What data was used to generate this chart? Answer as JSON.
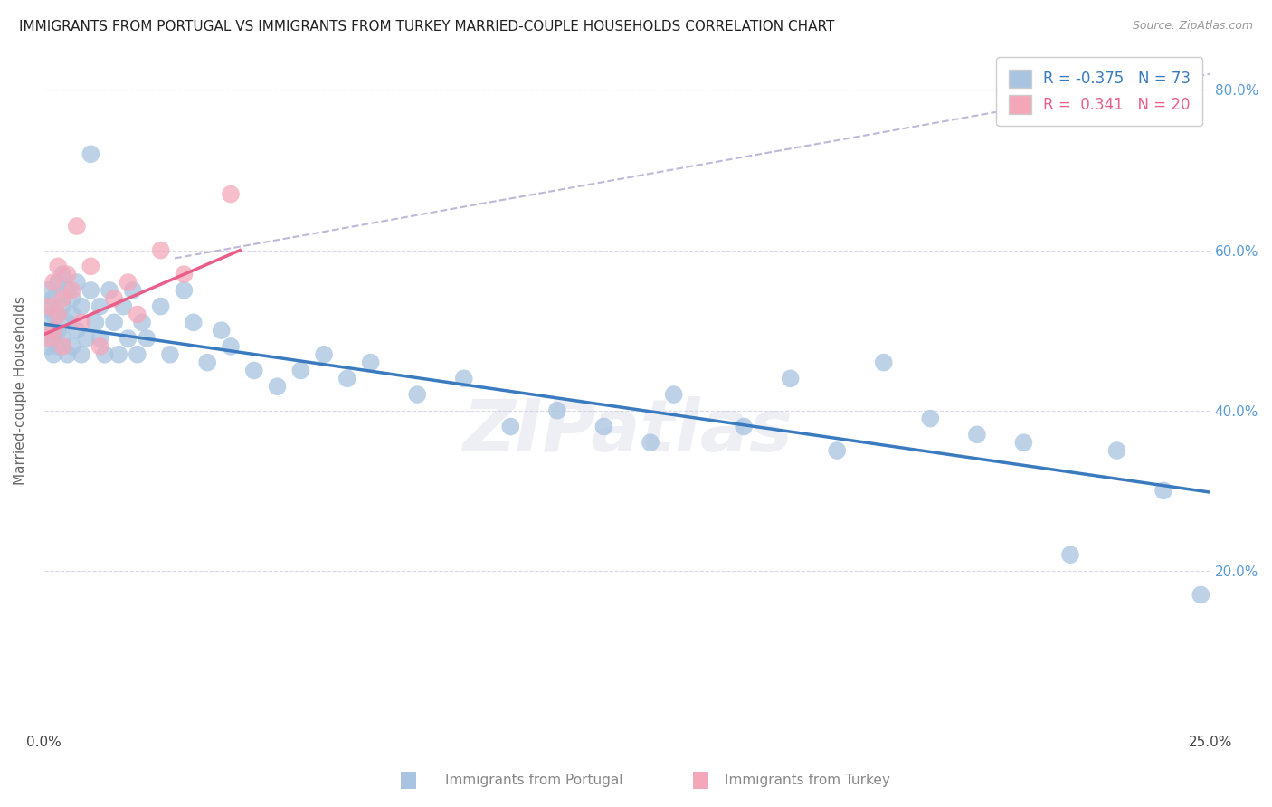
{
  "title": "IMMIGRANTS FROM PORTUGAL VS IMMIGRANTS FROM TURKEY MARRIED-COUPLE HOUSEHOLDS CORRELATION CHART",
  "source": "Source: ZipAtlas.com",
  "ylabel": "Married-couple Households",
  "x_min": 0.0,
  "x_max": 0.25,
  "y_min": 0.0,
  "y_max": 0.85,
  "y_ticks": [
    0.2,
    0.4,
    0.6,
    0.8
  ],
  "y_tick_labels": [
    "20.0%",
    "40.0%",
    "60.0%",
    "80.0%"
  ],
  "portugal_color": "#a8c4e0",
  "turkey_color": "#f4a7b9",
  "portugal_R": -0.375,
  "portugal_N": 73,
  "turkey_R": 0.341,
  "turkey_N": 20,
  "portugal_line_color": "#3a7abf",
  "turkey_line_color": "#e8608a",
  "dashed_line_color": "#c0b8d8",
  "portugal_line_x": [
    0.0,
    0.25
  ],
  "portugal_line_y": [
    0.508,
    0.298
  ],
  "turkey_line_x": [
    0.0,
    0.042
  ],
  "turkey_line_y": [
    0.495,
    0.6
  ],
  "dashed_line_x": [
    0.028,
    0.25
  ],
  "dashed_line_y": [
    0.59,
    0.82
  ],
  "portugal_scatter_x": [
    0.001,
    0.001,
    0.001,
    0.001,
    0.002,
    0.002,
    0.002,
    0.002,
    0.002,
    0.003,
    0.003,
    0.003,
    0.003,
    0.004,
    0.004,
    0.004,
    0.005,
    0.005,
    0.005,
    0.006,
    0.006,
    0.006,
    0.007,
    0.007,
    0.008,
    0.008,
    0.009,
    0.01,
    0.01,
    0.011,
    0.012,
    0.012,
    0.013,
    0.014,
    0.015,
    0.016,
    0.017,
    0.018,
    0.019,
    0.02,
    0.021,
    0.022,
    0.025,
    0.027,
    0.03,
    0.032,
    0.035,
    0.038,
    0.04,
    0.045,
    0.05,
    0.055,
    0.06,
    0.065,
    0.07,
    0.08,
    0.09,
    0.1,
    0.11,
    0.12,
    0.13,
    0.15,
    0.17,
    0.19,
    0.2,
    0.21,
    0.22,
    0.23,
    0.24,
    0.248,
    0.135,
    0.16,
    0.18
  ],
  "portugal_scatter_y": [
    0.51,
    0.53,
    0.48,
    0.55,
    0.5,
    0.52,
    0.47,
    0.54,
    0.49,
    0.56,
    0.5,
    0.52,
    0.48,
    0.53,
    0.49,
    0.57,
    0.51,
    0.55,
    0.47,
    0.52,
    0.54,
    0.48,
    0.56,
    0.5,
    0.53,
    0.47,
    0.49,
    0.72,
    0.55,
    0.51,
    0.49,
    0.53,
    0.47,
    0.55,
    0.51,
    0.47,
    0.53,
    0.49,
    0.55,
    0.47,
    0.51,
    0.49,
    0.53,
    0.47,
    0.55,
    0.51,
    0.46,
    0.5,
    0.48,
    0.45,
    0.43,
    0.45,
    0.47,
    0.44,
    0.46,
    0.42,
    0.44,
    0.38,
    0.4,
    0.38,
    0.36,
    0.38,
    0.35,
    0.39,
    0.37,
    0.36,
    0.22,
    0.35,
    0.3,
    0.17,
    0.42,
    0.44,
    0.46
  ],
  "turkey_scatter_x": [
    0.001,
    0.001,
    0.002,
    0.002,
    0.003,
    0.003,
    0.004,
    0.004,
    0.005,
    0.006,
    0.007,
    0.008,
    0.01,
    0.012,
    0.015,
    0.018,
    0.02,
    0.025,
    0.03,
    0.04
  ],
  "turkey_scatter_y": [
    0.53,
    0.49,
    0.56,
    0.5,
    0.58,
    0.52,
    0.54,
    0.48,
    0.57,
    0.55,
    0.63,
    0.51,
    0.58,
    0.48,
    0.54,
    0.56,
    0.52,
    0.6,
    0.57,
    0.67
  ],
  "legend_loc": "upper right",
  "watermark": "ZIPatlas",
  "background_color": "#ffffff",
  "grid_color": "#d8d8e8"
}
